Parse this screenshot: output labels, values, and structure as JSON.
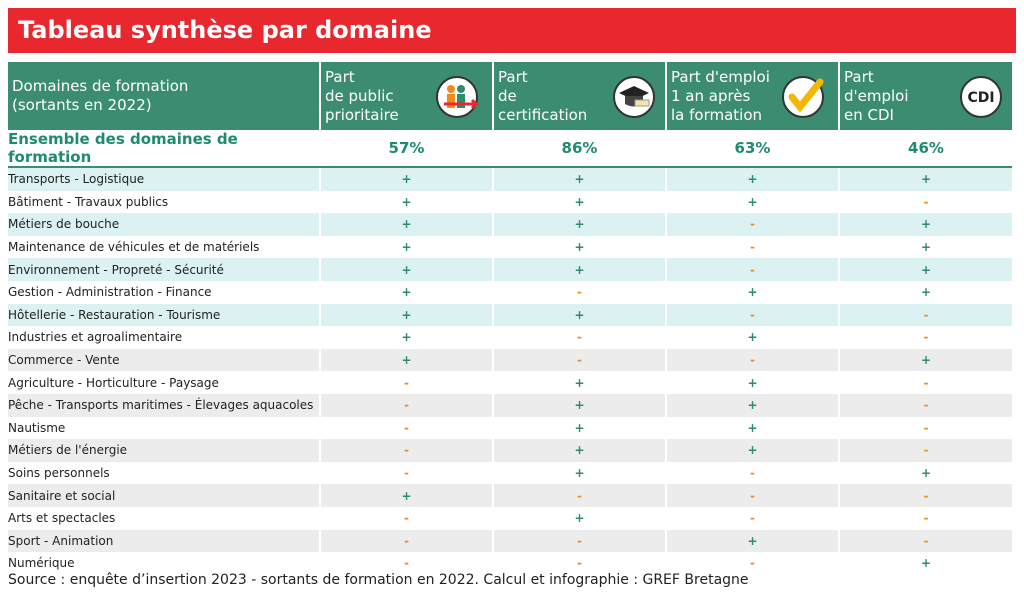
{
  "title": "Tableau synthèse par domaine",
  "table": {
    "header": [
      "Domaines de formation\n(sortants en 2022)",
      "Part\nde public\nprioritaire",
      "Part\nde\ncertification",
      "Part d'emploi\n1 an après\nla formation",
      "Part\nd'emploi\nen CDI"
    ],
    "icon_label": "CDI",
    "total": [
      "Ensemble des domaines de formation",
      "57%",
      "86%",
      "63%",
      "46%"
    ],
    "rows": [
      [
        "Transports - Logistique",
        "+",
        "+",
        "+",
        "+"
      ],
      [
        "Bâtiment - Travaux publics",
        "+",
        "+",
        "+",
        "-"
      ],
      [
        "Métiers de bouche",
        "+",
        "+",
        "-",
        "+"
      ],
      [
        "Maintenance de véhicules et de matériels",
        "+",
        "+",
        "-",
        "+"
      ],
      [
        "Environnement - Propreté - Sécurité",
        "+",
        "+",
        "-",
        "+"
      ],
      [
        "Gestion - Administration - Finance",
        "+",
        "-",
        "+",
        "+"
      ],
      [
        "Hôtellerie - Restauration - Tourisme",
        "+",
        "+",
        "-",
        "-"
      ],
      [
        "Industries et agroalimentaire",
        "+",
        "-",
        "+",
        "-"
      ],
      [
        "Commerce - Vente",
        "+",
        "-",
        "-",
        "+"
      ],
      [
        "Agriculture - Horticulture - Paysage",
        "-",
        "+",
        "+",
        "-"
      ],
      [
        "Pêche - Transports maritimes - Élevages aquacoles",
        "-",
        "+",
        "+",
        "-"
      ],
      [
        "Nautisme",
        "-",
        "+",
        "+",
        "-"
      ],
      [
        "Métiers de l'énergie",
        "-",
        "+",
        "+",
        "-"
      ],
      [
        "Soins personnels",
        "-",
        "+",
        "-",
        "+"
      ],
      [
        "Sanitaire et social",
        "+",
        "-",
        "-",
        "-"
      ],
      [
        "Arts et spectacles",
        "-",
        "+",
        "-",
        "-"
      ],
      [
        "Sport - Animation",
        "-",
        "-",
        "+",
        "-"
      ],
      [
        "Numérique",
        "-",
        "-",
        "-",
        "+"
      ]
    ]
  },
  "source": "Source : enquête d’insertion 2023 - sortants de formation en 2022. Calcul et infographie : GREF Bretagne"
}
